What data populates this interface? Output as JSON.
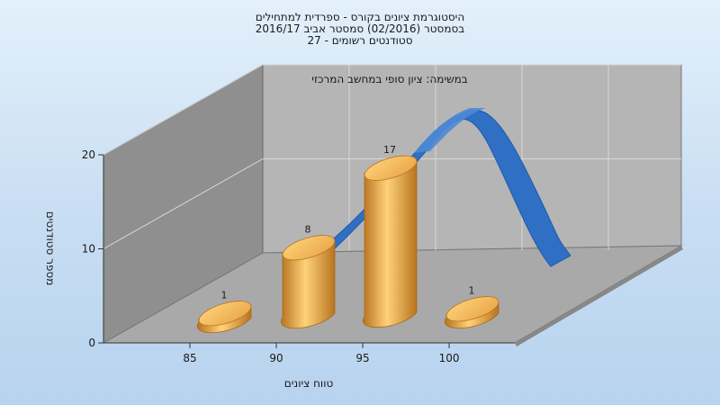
{
  "chart_data": {
    "type": "bar",
    "title_lines": [
      "היסטוגרמת ציונים בקורס - ספרדית למתחילים",
      "בסמסטר  (02/2016)  סמסטר אביב 2016/17",
      "סטודנטים רשומים - 27"
    ],
    "annotation": "במשימה: ציון סופי במחשב המרכזי",
    "xlabel": "טווח ציונים",
    "ylabel": "מספר סטודנטים",
    "categories": [
      "85",
      "90",
      "95",
      "100"
    ],
    "bars": [
      {
        "x": 87,
        "value": 1
      },
      {
        "x": 92,
        "value": 8
      },
      {
        "x": 97,
        "value": 17
      },
      {
        "x": 102,
        "value": 1
      }
    ],
    "x_ticks": [
      85,
      90,
      95,
      100
    ],
    "y_ticks": [
      0,
      10,
      20
    ],
    "ylim": [
      0,
      20
    ],
    "grid": true,
    "has_distribution_curve": true,
    "colors": {
      "bar": "#e8a445",
      "bar_light": "#ffd27a",
      "bar_dark": "#b8731f",
      "curve": "#2f6fc4",
      "curve_light": "#4c88d6",
      "back_wall": "#b5b5b5",
      "side_wall": "#8f8f8f",
      "floor": "#a9a9a9"
    }
  }
}
